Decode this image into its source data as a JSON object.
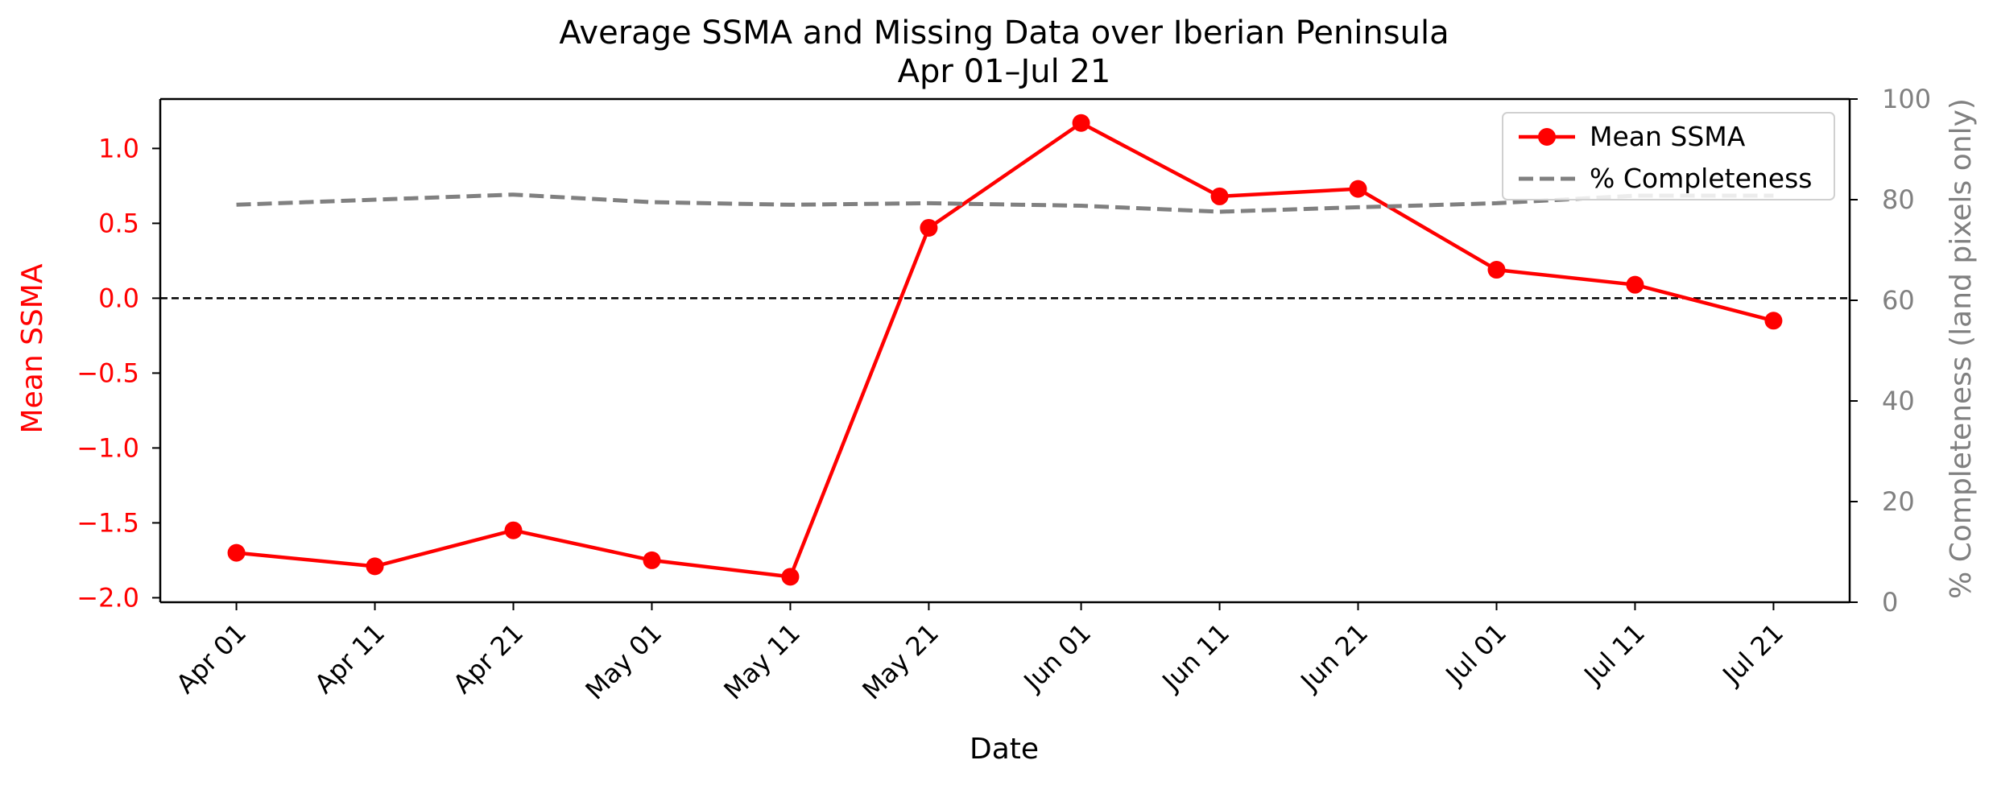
{
  "chart_data": {
    "type": "line",
    "title": "Average SSMA and Missing Data over Iberian Peninsula",
    "subtitle": "Apr 01–Jul 21",
    "xlabel": "Date",
    "ylabel_left": "Mean SSMA",
    "ylabel_right": "% Completeness (land pixels only)",
    "x": [
      "Apr 01",
      "Apr 11",
      "Apr 21",
      "May 01",
      "May 11",
      "May 21",
      "Jun 01",
      "Jun 11",
      "Jun 21",
      "Jul 01",
      "Jul 11",
      "Jul 21"
    ],
    "x_day_offsets": [
      0,
      10,
      20,
      30,
      40,
      50,
      61,
      71,
      81,
      91,
      101,
      111
    ],
    "xlim": [
      -5.5,
      116.5
    ],
    "ylim_left": [
      -2.03,
      1.33
    ],
    "yticks_left": [
      -2.0,
      -1.5,
      -1.0,
      -0.5,
      0.0,
      0.5,
      1.0
    ],
    "ylim_right": [
      0,
      100
    ],
    "yticks_right": [
      0,
      20,
      40,
      60,
      80,
      100
    ],
    "zero_line": 0.0,
    "grid": false,
    "legend_position": "top-right",
    "series": [
      {
        "name": "Mean SSMA",
        "axis": "left",
        "color": "#ff0000",
        "style": "solid-markers",
        "values": [
          -1.7,
          -1.79,
          -1.55,
          -1.75,
          -1.86,
          0.47,
          1.17,
          0.68,
          0.73,
          0.19,
          0.09,
          -0.15
        ]
      },
      {
        "name": "% Completeness",
        "axis": "right",
        "color": "#808080",
        "style": "dashed",
        "values": [
          79.0,
          80.0,
          81.0,
          79.5,
          79.0,
          79.3,
          78.8,
          77.6,
          78.5,
          79.3,
          80.8,
          80.8
        ]
      }
    ]
  }
}
